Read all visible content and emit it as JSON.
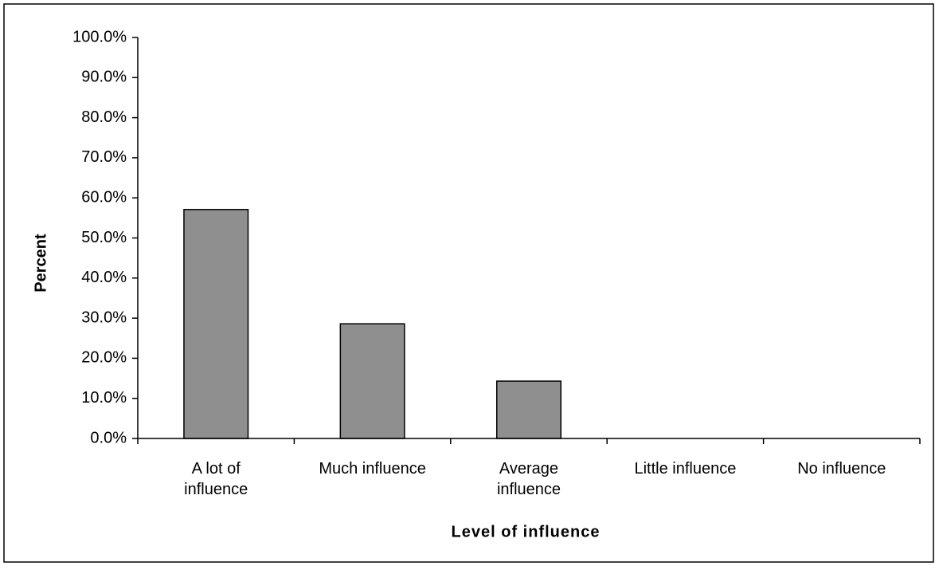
{
  "chart_data": {
    "type": "bar",
    "categories": [
      "A lot of\ninfluence",
      "Much influence",
      "Average\ninfluence",
      "Little influence",
      "No influence"
    ],
    "values": [
      57.1,
      28.6,
      14.3,
      0,
      0
    ],
    "color": "#8f8f8f",
    "x_label": "Level of influence",
    "y_label": "Percent",
    "ylim": [
      0,
      100
    ],
    "yticks": [
      {
        "value": 0,
        "label": "0.0%"
      },
      {
        "value": 10,
        "label": "10.0%"
      },
      {
        "value": 20,
        "label": "20.0%"
      },
      {
        "value": 30,
        "label": "30.0%"
      },
      {
        "value": 40,
        "label": "40.0%"
      },
      {
        "value": 50,
        "label": "50.0%"
      },
      {
        "value": 60,
        "label": "60.0%"
      },
      {
        "value": 70,
        "label": "70.0%"
      },
      {
        "value": 80,
        "label": "80.0%"
      },
      {
        "value": 90,
        "label": "90.0%"
      },
      {
        "value": 100,
        "label": "100.0%"
      }
    ],
    "grid": false
  }
}
